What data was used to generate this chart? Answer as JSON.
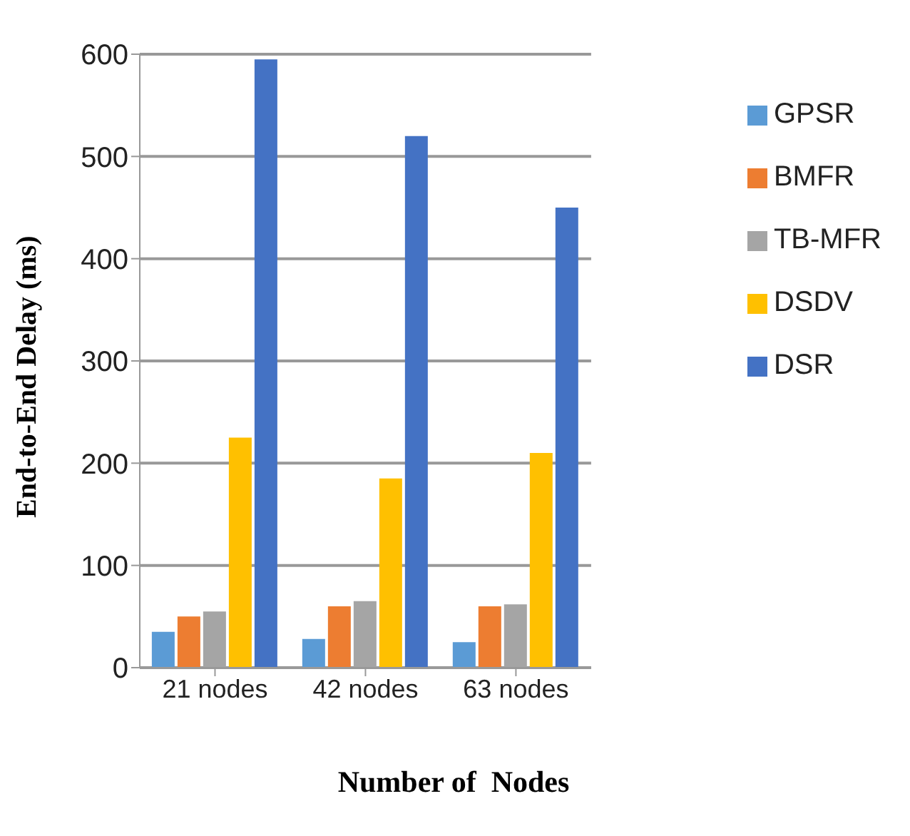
{
  "chart_data": {
    "type": "bar",
    "xlabel": "Number of  Nodes",
    "ylabel": "End-to-End Delay (ms)",
    "categories": [
      "21 nodes",
      "42 nodes",
      "63 nodes"
    ],
    "series": [
      {
        "name": "GPSR",
        "color": "#5b9bd5",
        "values": [
          35,
          28,
          25
        ]
      },
      {
        "name": "BMFR",
        "color": "#ed7d31",
        "values": [
          50,
          60,
          60
        ]
      },
      {
        "name": "TB-MFR",
        "color": "#a5a5a5",
        "values": [
          55,
          65,
          62
        ]
      },
      {
        "name": "DSDV",
        "color": "#ffc000",
        "values": [
          225,
          185,
          210
        ]
      },
      {
        "name": "DSR",
        "color": "#4472c4",
        "values": [
          595,
          520,
          450
        ]
      }
    ],
    "ylim": [
      0,
      600
    ],
    "yticks": [
      0,
      100,
      200,
      300,
      400,
      500,
      600
    ],
    "grid": "y",
    "legend": "top right"
  }
}
